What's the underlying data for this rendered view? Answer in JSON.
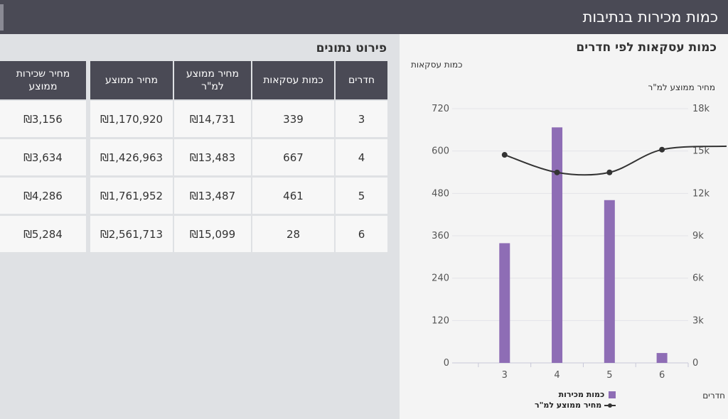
{
  "header": {
    "title": "כמות מכירות בנתיבות"
  },
  "chart": {
    "title": "כמות עסקאות לפי חדרים",
    "left_axis_label": "כמות עסקאות",
    "right_axis_label": "מחיר ממוצע למ\"ר",
    "x_axis_label": "חדרים",
    "legend": [
      {
        "label": "כמות מכירות",
        "kind": "bar",
        "color": "#8e6db5"
      },
      {
        "label": "מחיר ממוצע למ\"ר",
        "kind": "line",
        "color": "#333333"
      }
    ]
  },
  "chart_data": {
    "type": "bar",
    "categories": [
      "3",
      "4",
      "5",
      "6"
    ],
    "series": [
      {
        "name": "כמות מכירות",
        "type": "bar",
        "axis": "left",
        "values": [
          339,
          667,
          461,
          28
        ],
        "color": "#8e6db5"
      },
      {
        "name": "מחיר ממוצע למ\"ר",
        "type": "line",
        "axis": "right",
        "values": [
          14731,
          13483,
          13487,
          15099
        ],
        "color": "#333333"
      }
    ],
    "ylim_left": [
      0,
      720
    ],
    "yticks_left": [
      "0",
      "120",
      "240",
      "360",
      "480",
      "600",
      "720"
    ],
    "ylim_right": [
      0,
      18000
    ],
    "yticks_right": [
      "0",
      "3k",
      "6k",
      "9k",
      "12k",
      "15k",
      "18k"
    ],
    "grid": true,
    "legend_position": "bottom"
  },
  "table": {
    "title": "פירוט נתונים",
    "columns": [
      "חדרים",
      "כמות עסקאות",
      "מחיר ממוצע למ\"ר",
      "מחיר ממוצע",
      "מחיר שכירות ממוצע"
    ],
    "rows": [
      [
        "3",
        "339",
        "₪14,731",
        "₪1,170,920",
        "₪3,156"
      ],
      [
        "4",
        "667",
        "₪13,483",
        "₪1,426,963",
        "₪3,634"
      ],
      [
        "5",
        "461",
        "₪13,487",
        "₪1,761,952",
        "₪4,286"
      ],
      [
        "6",
        "28",
        "₪15,099",
        "₪2,561,713",
        "₪5,284"
      ]
    ]
  }
}
